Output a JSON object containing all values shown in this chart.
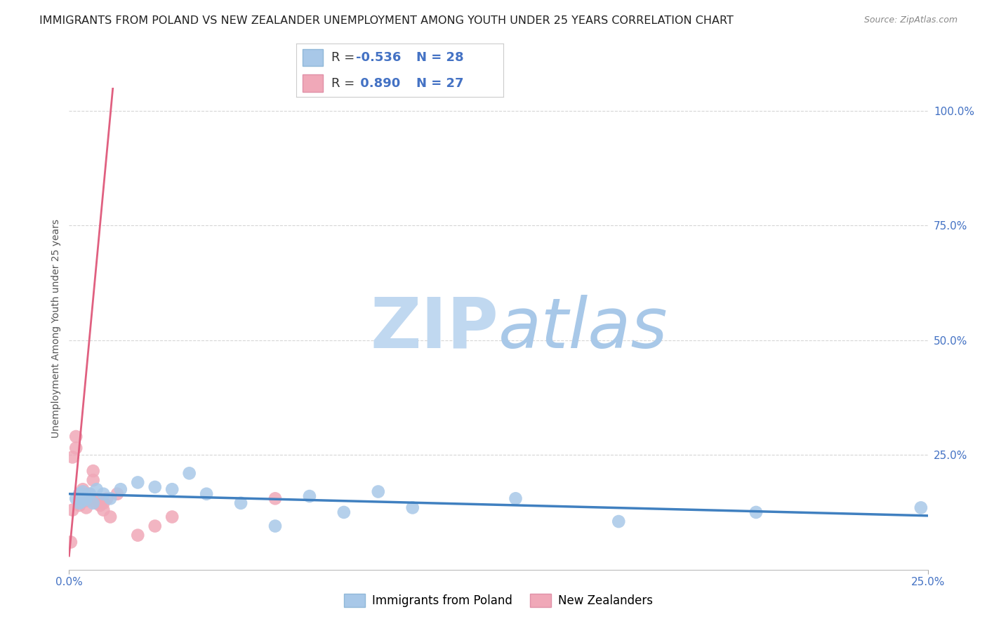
{
  "title": "IMMIGRANTS FROM POLAND VS NEW ZEALANDER UNEMPLOYMENT AMONG YOUTH UNDER 25 YEARS CORRELATION CHART",
  "source": "Source: ZipAtlas.com",
  "ylabel": "Unemployment Among Youth under 25 years",
  "y_tick_labels": [
    "25.0%",
    "50.0%",
    "75.0%",
    "100.0%"
  ],
  "y_tick_values": [
    0.25,
    0.5,
    0.75,
    1.0
  ],
  "legend_label1": "Immigrants from Poland",
  "legend_label2": "New Zealanders",
  "blue_color": "#A8C8E8",
  "pink_color": "#F0A8B8",
  "blue_line_color": "#4080C0",
  "pink_line_color": "#E06080",
  "R_blue": -0.536,
  "N_blue": 28,
  "R_pink": 0.89,
  "N_pink": 27,
  "blue_scatter_x": [
    0.002,
    0.003,
    0.003,
    0.004,
    0.004,
    0.005,
    0.005,
    0.006,
    0.007,
    0.008,
    0.01,
    0.012,
    0.015,
    0.02,
    0.025,
    0.03,
    0.035,
    0.04,
    0.05,
    0.06,
    0.07,
    0.08,
    0.09,
    0.1,
    0.13,
    0.16,
    0.2,
    0.248
  ],
  "blue_scatter_y": [
    0.155,
    0.145,
    0.165,
    0.15,
    0.17,
    0.16,
    0.155,
    0.165,
    0.145,
    0.175,
    0.165,
    0.155,
    0.175,
    0.19,
    0.18,
    0.175,
    0.21,
    0.165,
    0.145,
    0.095,
    0.16,
    0.125,
    0.17,
    0.135,
    0.155,
    0.105,
    0.125,
    0.135
  ],
  "pink_scatter_x": [
    0.0005,
    0.001,
    0.001,
    0.002,
    0.002,
    0.003,
    0.003,
    0.004,
    0.004,
    0.005,
    0.005,
    0.006,
    0.006,
    0.007,
    0.007,
    0.008,
    0.008,
    0.009,
    0.01,
    0.01,
    0.011,
    0.012,
    0.014,
    0.02,
    0.025,
    0.03,
    0.06
  ],
  "pink_scatter_y": [
    0.06,
    0.13,
    0.245,
    0.265,
    0.29,
    0.14,
    0.155,
    0.165,
    0.175,
    0.135,
    0.15,
    0.155,
    0.165,
    0.195,
    0.215,
    0.145,
    0.155,
    0.14,
    0.145,
    0.13,
    0.155,
    0.115,
    0.165,
    0.075,
    0.095,
    0.115,
    0.155
  ],
  "xlim": [
    0.0,
    0.25
  ],
  "ylim": [
    0.0,
    1.05
  ],
  "background_color": "#FFFFFF",
  "grid_color": "#CCCCCC",
  "watermark_zip_color": "#C8DDF0",
  "watermark_atlas_color": "#A8C8E8",
  "title_fontsize": 11.5,
  "axis_label_fontsize": 10,
  "tick_fontsize": 11,
  "legend_fontsize": 13,
  "text_color_dark": "#222222",
  "text_color_blue": "#4472C4"
}
